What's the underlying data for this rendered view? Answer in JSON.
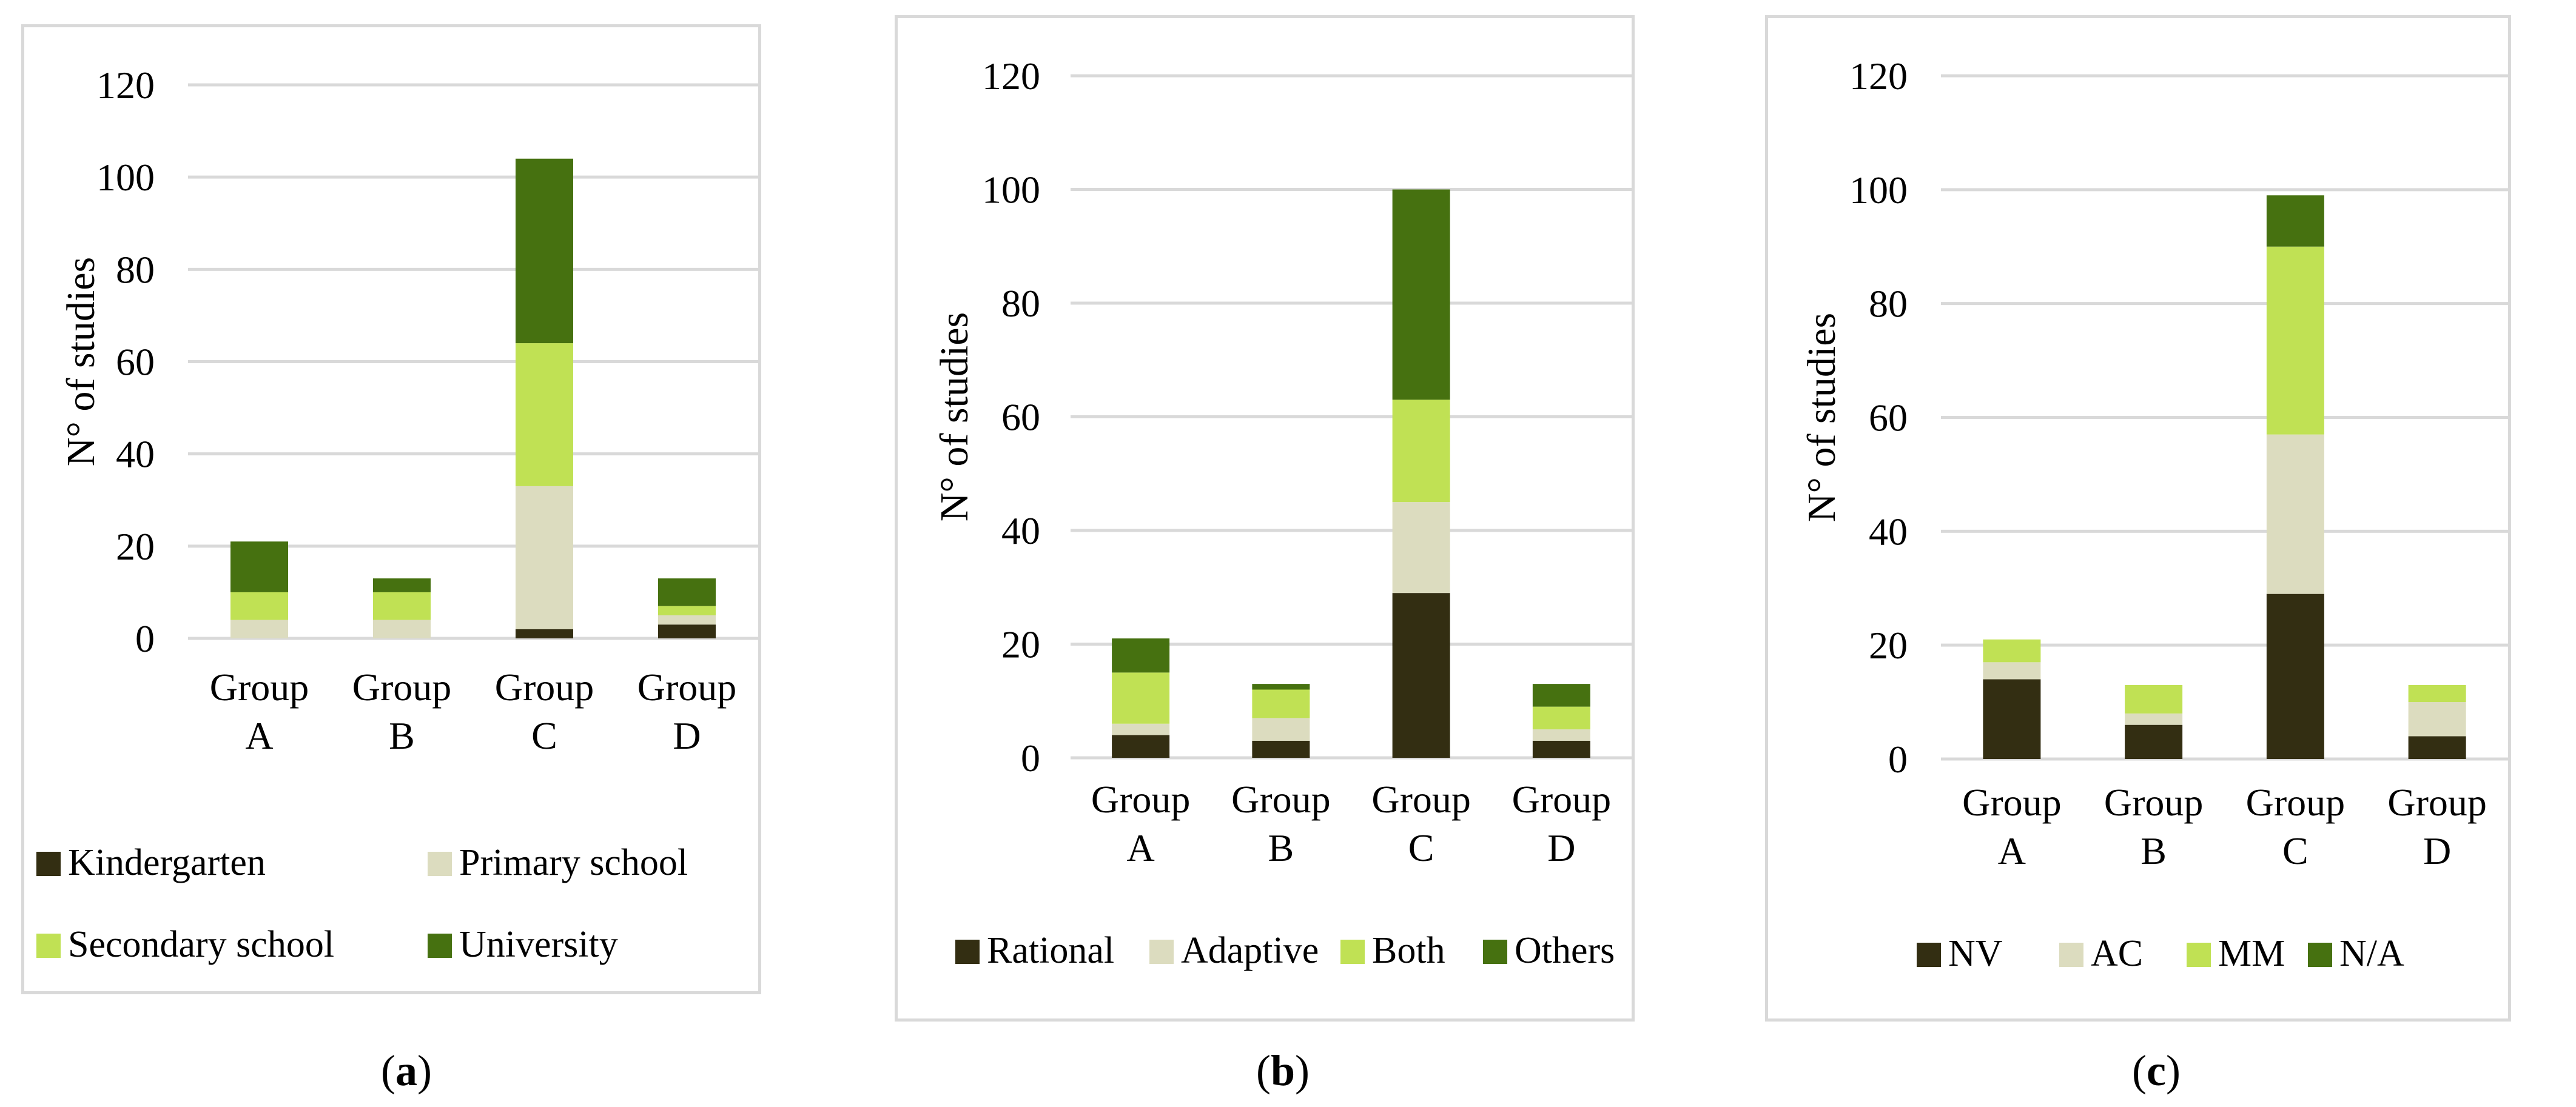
{
  "colors": {
    "dark": "#332e12",
    "light": "#dcdcbf",
    "lime": "#c0e154",
    "green": "#467110",
    "grid": "#d9d9d9"
  },
  "chart_data": [
    {
      "id": "a",
      "type": "bar",
      "stacked": true,
      "panel_label": "a",
      "ylabel": "N° of studies",
      "ylim": [
        0,
        120
      ],
      "yticks": [
        0,
        20,
        40,
        60,
        80,
        100,
        120
      ],
      "categories": [
        [
          "Group",
          "A"
        ],
        [
          "Group",
          "B"
        ],
        [
          "Group",
          "C"
        ],
        [
          "Group",
          "D"
        ]
      ],
      "legend_position": "bottom",
      "series": [
        {
          "name": "Kindergarten",
          "color": "#332e12",
          "values": [
            0,
            0,
            2,
            3
          ]
        },
        {
          "name": "Primary school",
          "color": "#dcdcbf",
          "values": [
            4,
            4,
            31,
            2
          ]
        },
        {
          "name": "Secondary school",
          "color": "#c0e154",
          "values": [
            6,
            6,
            31,
            2
          ]
        },
        {
          "name": "University",
          "color": "#467110",
          "values": [
            11,
            3,
            40,
            6
          ]
        }
      ]
    },
    {
      "id": "b",
      "type": "bar",
      "stacked": true,
      "panel_label": "b",
      "ylabel": "N° of studies",
      "ylim": [
        0,
        120
      ],
      "yticks": [
        0,
        20,
        40,
        60,
        80,
        100,
        120
      ],
      "categories": [
        [
          "Group",
          "A"
        ],
        [
          "Group",
          "B"
        ],
        [
          "Group",
          "C"
        ],
        [
          "Group",
          "D"
        ]
      ],
      "legend_position": "bottom",
      "series": [
        {
          "name": "Rational",
          "color": "#332e12",
          "values": [
            4,
            3,
            29,
            3
          ]
        },
        {
          "name": "Adaptive",
          "color": "#dcdcbf",
          "values": [
            2,
            4,
            16,
            2
          ]
        },
        {
          "name": "Both",
          "color": "#c0e154",
          "values": [
            9,
            5,
            18,
            4
          ]
        },
        {
          "name": "Others",
          "color": "#467110",
          "values": [
            6,
            1,
            37,
            4
          ]
        }
      ]
    },
    {
      "id": "c",
      "type": "bar",
      "stacked": true,
      "panel_label": "c",
      "ylabel": "N° of studies",
      "ylim": [
        0,
        120
      ],
      "yticks": [
        0,
        20,
        40,
        60,
        80,
        100,
        120
      ],
      "categories": [
        [
          "Group",
          "A"
        ],
        [
          "Group",
          "B"
        ],
        [
          "Group",
          "C"
        ],
        [
          "Group",
          "D"
        ]
      ],
      "legend_position": "bottom",
      "series": [
        {
          "name": "NV",
          "color": "#332e12",
          "values": [
            14,
            6,
            29,
            4
          ]
        },
        {
          "name": "AC",
          "color": "#dcdcbf",
          "values": [
            3,
            2,
            28,
            6
          ]
        },
        {
          "name": "MM",
          "color": "#c0e154",
          "values": [
            4,
            5,
            33,
            3
          ]
        },
        {
          "name": "N/A",
          "color": "#467110",
          "values": [
            0,
            0,
            9,
            0
          ]
        }
      ]
    }
  ]
}
